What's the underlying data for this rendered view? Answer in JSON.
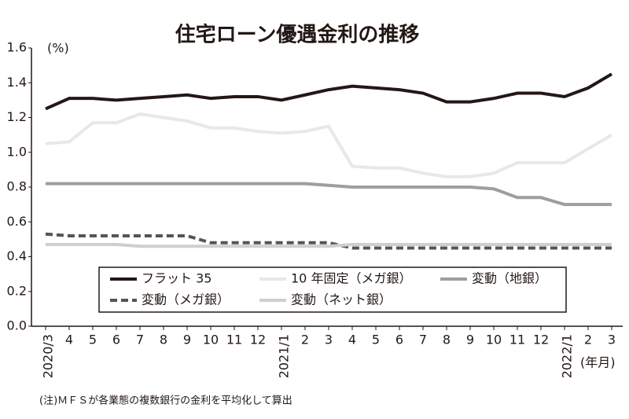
{
  "chart_data": {
    "type": "line",
    "title": "住宅ローン優遇金利の推移",
    "y_unit": "(%)",
    "x_unit": "(年月)",
    "note": "(注)ＭＦＳが各業態の複数銀行の金利を平均化して算出",
    "categories": [
      "2020/3",
      "4",
      "5",
      "6",
      "7",
      "8",
      "9",
      "10",
      "11",
      "12",
      "2021/1",
      "2",
      "3",
      "4",
      "5",
      "6",
      "7",
      "8",
      "9",
      "10",
      "11",
      "12",
      "2022/1",
      "2",
      "3"
    ],
    "series": [
      {
        "name": "フラット 35",
        "color": "#231815",
        "line_style": "solid",
        "values": [
          1.25,
          1.31,
          1.31,
          1.3,
          1.31,
          1.32,
          1.33,
          1.31,
          1.32,
          1.32,
          1.3,
          1.33,
          1.36,
          1.38,
          1.37,
          1.36,
          1.34,
          1.29,
          1.29,
          1.31,
          1.34,
          1.34,
          1.32,
          1.37,
          1.45
        ]
      },
      {
        "name": "10 年固定（メガ銀）",
        "color": "#e8e8e8",
        "line_style": "solid",
        "values": [
          1.05,
          1.06,
          1.17,
          1.17,
          1.22,
          1.2,
          1.18,
          1.14,
          1.14,
          1.12,
          1.11,
          1.12,
          1.15,
          0.92,
          0.91,
          0.91,
          0.88,
          0.86,
          0.86,
          0.88,
          0.94,
          0.94,
          0.94,
          1.02,
          1.1
        ]
      },
      {
        "name": "変動（地銀）",
        "color": "#9e9e9e",
        "line_style": "solid",
        "values": [
          0.82,
          0.82,
          0.82,
          0.82,
          0.82,
          0.82,
          0.82,
          0.82,
          0.82,
          0.82,
          0.82,
          0.82,
          0.81,
          0.8,
          0.8,
          0.8,
          0.8,
          0.8,
          0.8,
          0.79,
          0.74,
          0.74,
          0.7,
          0.7,
          0.7
        ]
      },
      {
        "name": "変動（メガ銀）",
        "color": "#555555",
        "line_style": "dashed",
        "values": [
          0.53,
          0.52,
          0.52,
          0.52,
          0.52,
          0.52,
          0.52,
          0.48,
          0.48,
          0.48,
          0.48,
          0.48,
          0.48,
          0.45,
          0.45,
          0.45,
          0.45,
          0.45,
          0.45,
          0.45,
          0.45,
          0.45,
          0.45,
          0.45,
          0.45
        ]
      },
      {
        "name": "変動（ネット銀）",
        "color": "#cfcfcf",
        "line_style": "solid",
        "values": [
          0.47,
          0.47,
          0.47,
          0.47,
          0.46,
          0.46,
          0.46,
          0.46,
          0.46,
          0.46,
          0.46,
          0.46,
          0.46,
          0.47,
          0.47,
          0.47,
          0.47,
          0.47,
          0.47,
          0.47,
          0.47,
          0.47,
          0.47,
          0.47,
          0.47
        ]
      }
    ],
    "ylim": [
      0,
      1.6
    ],
    "yticks": [
      {
        "value": 0,
        "label": "0.0"
      },
      0.2,
      0.4,
      0.6,
      0.8,
      {
        "value": 1,
        "label": "1.0"
      },
      1.2,
      1.4,
      1.6
    ],
    "grid": false
  }
}
